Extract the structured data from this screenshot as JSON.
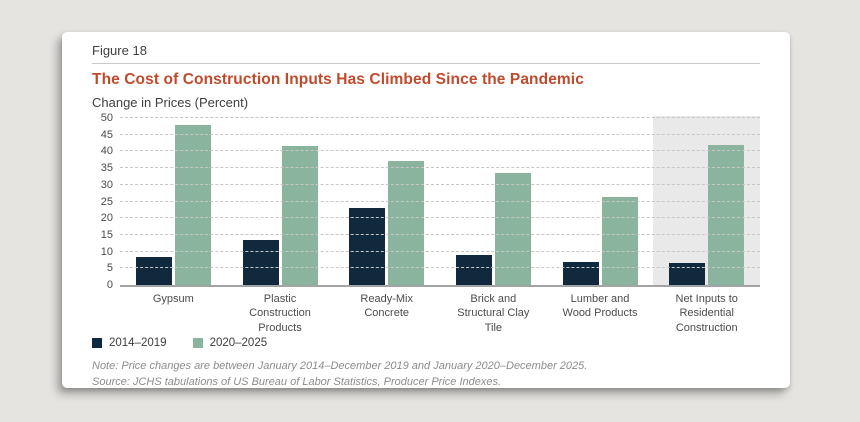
{
  "header": {
    "figure_label": "Figure 18",
    "title": "The Cost of Construction Inputs Has Climbed Since the Pandemic",
    "subtitle": "Change in Prices (Percent)"
  },
  "footer": {
    "note": "Note: Price changes are between January 2014–December 2019 and January 2020–December 2025.",
    "source": "Source: JCHS tabulations of US Bureau of Labor Statistics, Producer Price Indexes."
  },
  "legend": {
    "items": [
      {
        "label": "2014–2019",
        "color": "#10293c"
      },
      {
        "label": "2020–2025",
        "color": "#8bb49e"
      }
    ]
  },
  "colors": {
    "title_accent": "#bf4b2c",
    "series_dark_navy": "#10293c",
    "series_green": "#8bb49e",
    "highlight_band": "#e9e9e9",
    "page_background": "#e6e4e1",
    "card_background": "#ffffff"
  },
  "chart_data": {
    "type": "bar",
    "title": "The Cost of Construction Inputs Has Climbed Since the Pandemic",
    "ylabel": "Change in Prices (Percent)",
    "categories": [
      "Gypsum",
      "Plastic Construction Products",
      "Ready-Mix Concrete",
      "Brick and Structural Clay Tile",
      "Lumber and Wood Products",
      "Net Inputs to Residential Construction"
    ],
    "series": [
      {
        "name": "2014–2019",
        "color": "#10293c",
        "values": [
          8.5,
          13.5,
          23,
          9,
          7,
          6.5
        ]
      },
      {
        "name": "2020–2025",
        "color": "#8bb49e",
        "values": [
          48,
          41.5,
          37,
          33.5,
          26.5,
          42
        ]
      }
    ],
    "ylim": [
      0,
      50
    ],
    "ytick_step": 5,
    "grid": "horizontal-dashed",
    "legend_position": "bottom-left",
    "highlighted_category": "Net Inputs to Residential Construction"
  }
}
